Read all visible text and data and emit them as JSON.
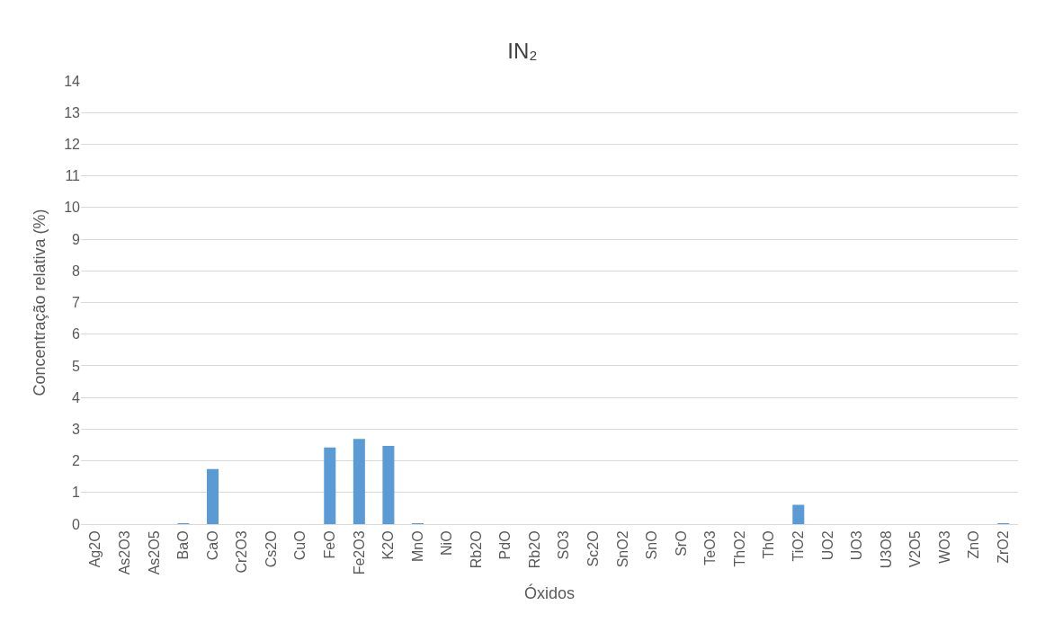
{
  "chart_data": {
    "type": "bar",
    "title": "IN₂",
    "xlabel": "Óxidos",
    "ylabel": "Concentração relativa (%)",
    "categories": [
      "Ag2O",
      "As2O3",
      "As2O5",
      "BaO",
      "CaO",
      "Cr2O3",
      "Cs2O",
      "CuO",
      "FeO",
      "Fe2O3",
      "K2O",
      "MnO",
      "NiO",
      "Rb2O",
      "PdO",
      "Rb2O",
      "SO3",
      "Sc2O",
      "SnO2",
      "SnO",
      "SrO",
      "TeO3",
      "ThO2",
      "ThO",
      "TiO2",
      "UO2",
      "UO3",
      "U3O8",
      "V2O5",
      "WO3",
      "ZnO",
      "ZrO2"
    ],
    "values": [
      0,
      0,
      0,
      0.02,
      1.74,
      0,
      0,
      0,
      2.42,
      2.69,
      2.47,
      0.02,
      0,
      0,
      0,
      0,
      0,
      0,
      0,
      0,
      0,
      0,
      0,
      0,
      0.61,
      0,
      0,
      0,
      0,
      0,
      0,
      0.02
    ],
    "color": "#5b9bd5",
    "ylim": [
      0,
      14
    ],
    "yticks": [
      0,
      1,
      2,
      3,
      4,
      5,
      6,
      7,
      8,
      9,
      10,
      11,
      12,
      13,
      14
    ],
    "grid": "y"
  }
}
